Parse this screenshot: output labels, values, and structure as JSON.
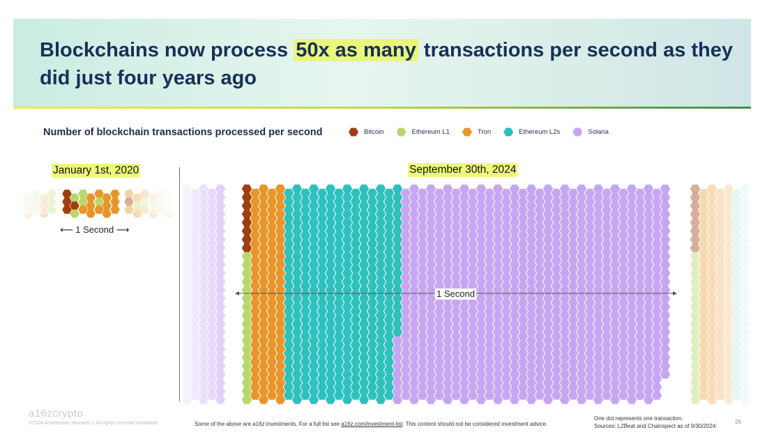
{
  "header": {
    "title_before": "Blockchains now process ",
    "title_highlight": "50x as many",
    "title_after": " transactions per second as they did just four years ago"
  },
  "chart_data": {
    "type": "dot-matrix",
    "title": "Number of blockchain transactions processed per second",
    "unit_note": "One dot represents one transaction.",
    "legend": [
      {
        "name": "Bitcoin",
        "color": "#a23d10"
      },
      {
        "name": "Ethereum L1",
        "color": "#b7d86a"
      },
      {
        "name": "Tron",
        "color": "#e8952a"
      },
      {
        "name": "Ethereum L2s",
        "color": "#2ec0bd"
      },
      {
        "name": "Solana",
        "color": "#c6a6f2"
      }
    ],
    "panels": [
      {
        "date": "January 1st, 2020",
        "time_span": "1 Second",
        "composition": [
          "Bitcoin",
          "Ethereum L1",
          "Tron"
        ]
      },
      {
        "date": "September 30th, 2024",
        "time_span": "1 Second",
        "composition": [
          "Bitcoin",
          "Ethereum L1",
          "Tron",
          "Ethereum L2s",
          "Solana"
        ]
      }
    ]
  },
  "footer": {
    "logo": "a16zcrypto",
    "copyright": "©2024 Andreessen Horowitz. | All rights reserved worldwide.",
    "disclaimer_before": "Some of the above are a16z investments. For a full list see ",
    "disclaimer_link": "a16z.com/investment-list",
    "disclaimer_after": ". This content should not be considered investment advice.",
    "note_line1": "One dot represents one transaction.",
    "note_line2": "Sources: L2Beat and Chainspect as of 9/30/2024.",
    "page_number": "26"
  }
}
